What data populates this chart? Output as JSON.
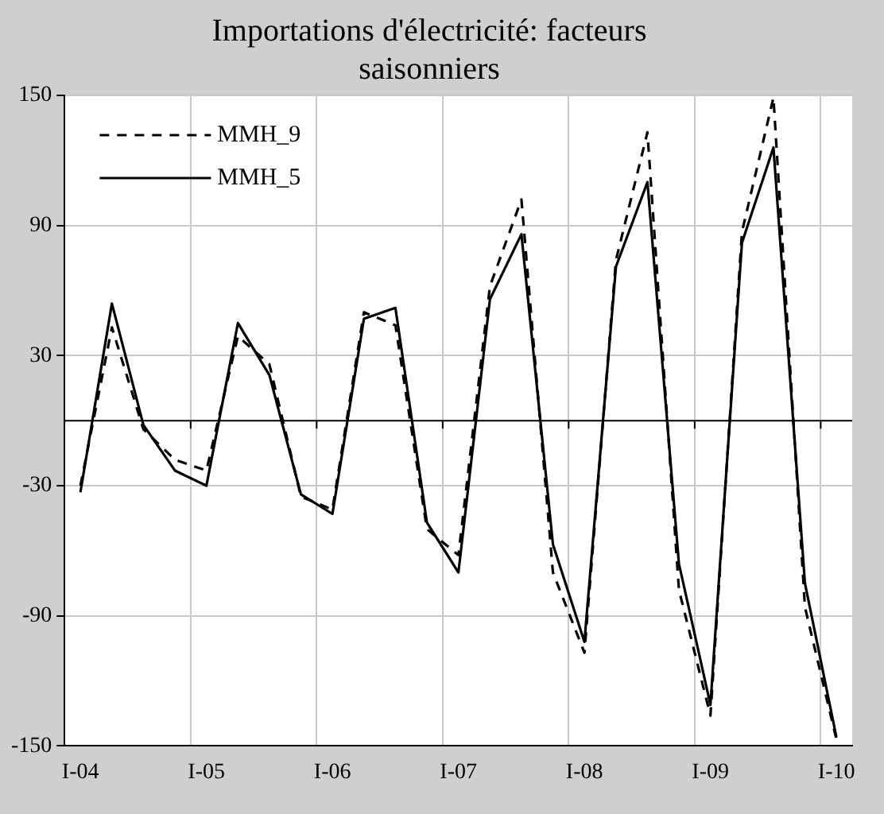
{
  "chart_data": {
    "type": "line",
    "title": "Importations d'électricité: facteurs saisonniers",
    "categories": [
      "I-04",
      null,
      null,
      null,
      "I-05",
      null,
      null,
      null,
      "I-06",
      null,
      null,
      null,
      "I-07",
      null,
      null,
      null,
      "I-08",
      null,
      null,
      null,
      "I-09",
      null,
      null,
      null,
      "I-10"
    ],
    "series": [
      {
        "name": "MMH_9",
        "color": "#000000",
        "line_style": "dashed",
        "values": [
          -30,
          43,
          -4,
          -18,
          -23,
          39,
          26,
          -35,
          -41,
          50,
          44,
          -50,
          -62,
          62,
          102,
          -70,
          -107,
          74,
          133,
          -78,
          -136,
          87,
          149,
          -86,
          -147
        ]
      },
      {
        "name": "MMH_5",
        "color": "#000000",
        "line_style": "solid",
        "values": [
          -33,
          54,
          -2,
          -23,
          -30,
          45,
          21,
          -34,
          -43,
          47,
          52,
          -47,
          -70,
          56,
          86,
          -57,
          -102,
          71,
          110,
          -66,
          -131,
          82,
          126,
          -75,
          -146
        ]
      }
    ],
    "ylim": [
      -150,
      150
    ],
    "yticks": [
      -150,
      -90,
      -30,
      30,
      90,
      150
    ],
    "ref_lines": [
      {
        "axis": "y",
        "value": 0,
        "color": "#000000"
      }
    ],
    "grid": true,
    "legend": "top left",
    "marker": "none"
  }
}
